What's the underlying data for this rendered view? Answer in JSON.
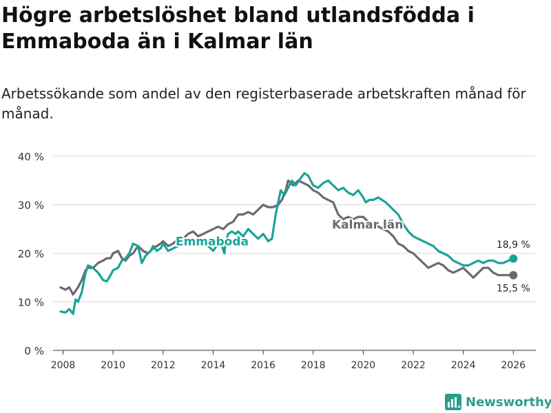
{
  "title": "Högre arbetslöshet bland utlandsfödda i Emmaboda än i Kalmar län",
  "subtitle": "Arbetssökande som andel av den registerbaserade arbetskraften månad för månad.",
  "brand": "Newsworthy",
  "chart_data": {
    "type": "line",
    "ylim": [
      0,
      40
    ],
    "xlim": [
      2007.6,
      2026.9
    ],
    "y_ticks": [
      0,
      10,
      20,
      30,
      40
    ],
    "y_tick_labels": [
      "0 %",
      "10 %",
      "20 %",
      "30 %",
      "40 %"
    ],
    "x_ticks": [
      2008,
      2010,
      2012,
      2014,
      2016,
      2018,
      2020,
      2022,
      2024,
      2026
    ],
    "x_tick_labels": [
      "2008",
      "2010",
      "2012",
      "2014",
      "2016",
      "2018",
      "2020",
      "2022",
      "2024",
      "2026"
    ],
    "grid": "horizontal",
    "series": [
      {
        "name": "Emmaboda",
        "color": "#1aa398",
        "end_label": "18,9 %",
        "x": [
          2007.9,
          2008.1,
          2008.25,
          2008.4,
          2008.5,
          2008.6,
          2008.75,
          2008.9,
          2009.0,
          2009.2,
          2009.4,
          2009.6,
          2009.75,
          2009.9,
          2010.0,
          2010.2,
          2010.35,
          2010.5,
          2010.65,
          2010.8,
          2011.0,
          2011.15,
          2011.3,
          2011.5,
          2011.6,
          2011.75,
          2011.9,
          2012.0,
          2012.2,
          2012.4,
          2012.6,
          2012.75,
          2013.0,
          2013.2,
          2013.4,
          2013.6,
          2013.8,
          2014.0,
          2014.2,
          2014.35,
          2014.45,
          2014.5,
          2014.6,
          2014.75,
          2014.9,
          2015.0,
          2015.2,
          2015.4,
          2015.6,
          2015.8,
          2016.0,
          2016.2,
          2016.35,
          2016.5,
          2016.7,
          2016.85,
          2017.0,
          2017.15,
          2017.3,
          2017.5,
          2017.65,
          2017.8,
          2017.9,
          2018.0,
          2018.2,
          2018.4,
          2018.6,
          2018.8,
          2019.0,
          2019.2,
          2019.4,
          2019.6,
          2019.8,
          2020.0,
          2020.1,
          2020.25,
          2020.4,
          2020.6,
          2020.75,
          2020.9,
          2021.0,
          2021.2,
          2021.4,
          2021.6,
          2021.8,
          2022.0,
          2022.2,
          2022.4,
          2022.6,
          2022.8,
          2023.0,
          2023.2,
          2023.4,
          2023.6,
          2023.8,
          2024.0,
          2024.2,
          2024.4,
          2024.6,
          2024.8,
          2025.0,
          2025.2,
          2025.4,
          2025.6,
          2025.8,
          2026.0
        ],
        "values": [
          8.0,
          7.8,
          8.5,
          7.5,
          10.5,
          10.0,
          12.0,
          16.0,
          17.5,
          17.0,
          16.0,
          14.5,
          14.2,
          15.5,
          16.5,
          17.0,
          18.5,
          19.0,
          20.0,
          22.0,
          21.5,
          18.0,
          19.5,
          20.5,
          21.5,
          20.5,
          21.0,
          22.0,
          20.5,
          21.0,
          21.5,
          22.5,
          23.0,
          22.0,
          23.0,
          22.0,
          21.5,
          20.5,
          22.0,
          21.5,
          20.0,
          22.0,
          24.0,
          24.5,
          24.0,
          24.5,
          23.5,
          25.0,
          24.0,
          23.0,
          24.0,
          22.5,
          23.0,
          28.0,
          33.0,
          32.0,
          33.5,
          35.0,
          34.0,
          35.5,
          36.5,
          36.0,
          35.0,
          34.0,
          33.5,
          34.5,
          35.0,
          34.0,
          33.0,
          33.5,
          32.5,
          32.0,
          33.0,
          31.5,
          30.5,
          31.0,
          31.0,
          31.5,
          31.0,
          30.5,
          30.0,
          29.0,
          28.0,
          26.0,
          24.5,
          23.5,
          23.0,
          22.5,
          22.0,
          21.5,
          20.5,
          20.0,
          19.5,
          18.5,
          18.0,
          17.5,
          17.5,
          18.0,
          18.5,
          18.0,
          18.5,
          18.5,
          18.0,
          18.0,
          18.5,
          18.9
        ]
      },
      {
        "name": "Kalmar län",
        "color": "#6b6870",
        "end_label": "15,5 %",
        "x": [
          2007.9,
          2008.1,
          2008.25,
          2008.4,
          2008.6,
          2008.75,
          2008.9,
          2009.0,
          2009.2,
          2009.4,
          2009.6,
          2009.75,
          2009.9,
          2010.0,
          2010.2,
          2010.35,
          2010.5,
          2010.65,
          2010.8,
          2011.0,
          2011.2,
          2011.4,
          2011.6,
          2011.75,
          2011.9,
          2012.0,
          2012.2,
          2012.4,
          2012.6,
          2012.8,
          2013.0,
          2013.2,
          2013.4,
          2013.6,
          2013.8,
          2014.0,
          2014.2,
          2014.4,
          2014.6,
          2014.8,
          2015.0,
          2015.2,
          2015.4,
          2015.6,
          2015.8,
          2016.0,
          2016.2,
          2016.4,
          2016.6,
          2016.75,
          2016.9,
          2017.0,
          2017.2,
          2017.4,
          2017.6,
          2017.8,
          2018.0,
          2018.2,
          2018.4,
          2018.6,
          2018.8,
          2019.0,
          2019.2,
          2019.4,
          2019.6,
          2019.8,
          2020.0,
          2020.2,
          2020.4,
          2020.6,
          2020.8,
          2021.0,
          2021.2,
          2021.4,
          2021.6,
          2021.8,
          2022.0,
          2022.2,
          2022.4,
          2022.6,
          2022.8,
          2023.0,
          2023.2,
          2023.4,
          2023.6,
          2023.8,
          2024.0,
          2024.2,
          2024.4,
          2024.6,
          2024.8,
          2025.0,
          2025.2,
          2025.4,
          2025.6,
          2025.8,
          2026.0
        ],
        "values": [
          13.0,
          12.5,
          13.0,
          11.5,
          13.0,
          14.5,
          16.5,
          17.0,
          17.0,
          18.0,
          18.5,
          19.0,
          19.0,
          20.0,
          20.5,
          19.0,
          18.5,
          19.5,
          20.0,
          21.5,
          20.5,
          20.0,
          21.0,
          21.5,
          22.0,
          22.5,
          21.5,
          22.0,
          23.0,
          23.0,
          24.0,
          24.5,
          23.5,
          24.0,
          24.5,
          25.0,
          25.5,
          25.0,
          26.0,
          26.5,
          28.0,
          28.0,
          28.5,
          28.0,
          29.0,
          30.0,
          29.5,
          29.5,
          30.0,
          31.0,
          33.0,
          35.0,
          34.0,
          35.0,
          34.5,
          34.0,
          33.0,
          32.5,
          31.5,
          31.0,
          30.5,
          28.0,
          27.0,
          27.5,
          27.0,
          27.5,
          27.5,
          26.5,
          26.0,
          25.5,
          25.0,
          24.5,
          23.5,
          22.0,
          21.5,
          20.5,
          20.0,
          19.0,
          18.0,
          17.0,
          17.5,
          18.0,
          17.5,
          16.5,
          16.0,
          16.5,
          17.0,
          16.0,
          15.0,
          16.0,
          17.0,
          17.0,
          16.0,
          15.5,
          15.5,
          15.5,
          15.5
        ]
      }
    ]
  }
}
